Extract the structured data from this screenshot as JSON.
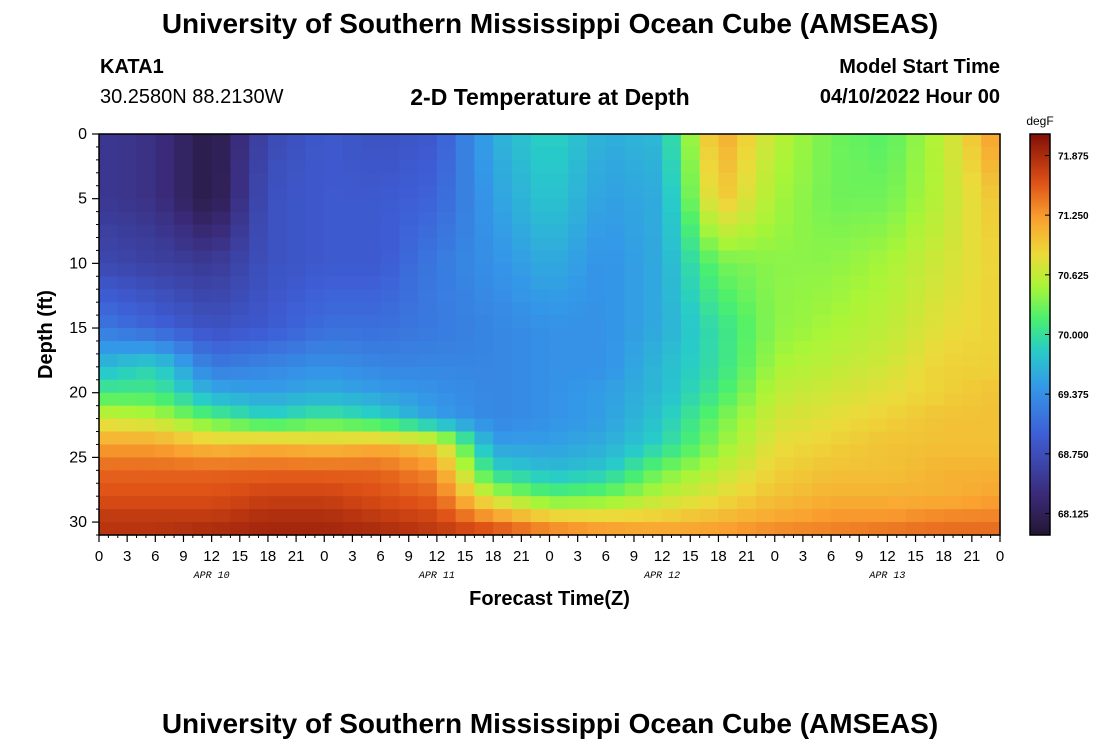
{
  "header": {
    "title": "University of Southern Mississippi Ocean Cube (AMSEAS)",
    "station": "KATA1",
    "coordinates": "30.2580N  88.2130W",
    "subtitle": "2-D Temperature at Depth",
    "model_start_label": "Model Start Time",
    "model_start_value": "04/10/2022 Hour 00"
  },
  "footer": {
    "title": "University of Southern Mississippi Ocean Cube (AMSEAS)"
  },
  "chart_data": {
    "type": "heatmap",
    "title": "2-D Temperature at Depth",
    "xlabel": "Forecast Time(Z)",
    "ylabel": "Depth (ft)",
    "xlim": [
      0,
      96
    ],
    "ylim": [
      31,
      0
    ],
    "x_ticks": [
      0,
      3,
      6,
      9,
      12,
      15,
      18,
      21,
      24,
      27,
      30,
      33,
      36,
      39,
      42,
      45,
      48,
      51,
      54,
      57,
      60,
      63,
      66,
      69,
      72,
      75,
      78,
      81,
      84,
      87,
      90,
      93,
      96
    ],
    "x_tick_labels": [
      "0",
      "3",
      "6",
      "9",
      "12",
      "15",
      "18",
      "21",
      "0",
      "3",
      "6",
      "9",
      "12",
      "15",
      "18",
      "21",
      "0",
      "3",
      "6",
      "9",
      "12",
      "15",
      "18",
      "21",
      "0",
      "3",
      "6",
      "9",
      "12",
      "15",
      "18",
      "21",
      "0"
    ],
    "day_labels": [
      {
        "label": "APR 10",
        "x": 12
      },
      {
        "label": "APR 11",
        "x": 36
      },
      {
        "label": "APR 12",
        "x": 60
      },
      {
        "label": "APR 13",
        "x": 84
      }
    ],
    "y_ticks": [
      0,
      5,
      10,
      15,
      20,
      25,
      30
    ],
    "y_tick_labels": [
      "0",
      "5",
      "10",
      "15",
      "20",
      "25",
      "30"
    ],
    "colorbar": {
      "unit": "degF",
      "min": 67.9,
      "max": 72.1,
      "ticks": [
        68.125,
        68.75,
        69.375,
        70.0,
        70.625,
        71.25,
        71.875
      ],
      "tick_labels": [
        "68.125",
        "68.750",
        "69.375",
        "70.000",
        "70.625",
        "71.250",
        "71.875"
      ]
    },
    "depths_ft": [
      0,
      5,
      10,
      15,
      18,
      20,
      22,
      24,
      26,
      28,
      30,
      31
    ],
    "times_hr": [
      0,
      6,
      12,
      18,
      24,
      30,
      36,
      42,
      48,
      54,
      60,
      66,
      72,
      78,
      84,
      90,
      96
    ],
    "temperature_degF": [
      [
        68.5,
        68.4,
        68.0,
        68.7,
        68.9,
        68.8,
        68.9,
        69.6,
        69.9,
        69.6,
        69.7,
        71.2,
        70.6,
        70.3,
        70.2,
        70.6,
        71.3
      ],
      [
        68.5,
        68.4,
        68.0,
        68.8,
        68.9,
        68.9,
        69.0,
        69.5,
        69.8,
        69.5,
        69.6,
        71.0,
        70.5,
        70.3,
        70.3,
        70.6,
        71.0
      ],
      [
        68.7,
        68.6,
        68.5,
        68.8,
        68.9,
        68.9,
        69.2,
        69.4,
        69.6,
        69.4,
        69.6,
        70.3,
        70.4,
        70.4,
        70.5,
        70.7,
        70.9
      ],
      [
        69.2,
        69.0,
        68.8,
        68.9,
        69.1,
        69.1,
        69.2,
        69.3,
        69.4,
        69.4,
        69.6,
        70.0,
        70.4,
        70.5,
        70.6,
        70.8,
        70.9
      ],
      [
        69.7,
        69.9,
        69.2,
        69.3,
        69.4,
        69.3,
        69.3,
        69.3,
        69.4,
        69.4,
        69.7,
        70.0,
        70.5,
        70.6,
        70.7,
        70.9,
        70.9
      ],
      [
        70.1,
        70.1,
        69.6,
        69.5,
        69.6,
        69.5,
        69.4,
        69.3,
        69.4,
        69.5,
        69.7,
        70.1,
        70.6,
        70.7,
        70.8,
        70.9,
        71.0
      ],
      [
        70.7,
        70.6,
        70.2,
        69.9,
        70.1,
        69.9,
        69.5,
        69.3,
        69.4,
        69.5,
        69.8,
        70.3,
        70.7,
        70.8,
        70.9,
        71.0,
        71.0
      ],
      [
        71.2,
        71.2,
        71.0,
        71.1,
        71.0,
        71.1,
        70.9,
        69.5,
        69.5,
        69.6,
        69.9,
        70.4,
        70.8,
        70.9,
        71.0,
        71.0,
        71.0
      ],
      [
        71.5,
        71.5,
        71.5,
        71.5,
        71.5,
        71.5,
        71.3,
        69.9,
        69.7,
        69.8,
        70.3,
        70.6,
        70.9,
        71.0,
        71.0,
        71.1,
        71.1
      ],
      [
        71.6,
        71.6,
        71.6,
        71.7,
        71.7,
        71.6,
        71.5,
        70.6,
        70.2,
        70.3,
        70.6,
        70.8,
        71.0,
        71.1,
        71.1,
        71.1,
        71.2
      ],
      [
        71.8,
        71.8,
        71.8,
        71.9,
        71.9,
        71.8,
        71.7,
        71.4,
        71.1,
        71.0,
        71.0,
        71.1,
        71.2,
        71.3,
        71.3,
        71.4,
        71.4
      ],
      [
        71.8,
        71.8,
        71.9,
        71.9,
        71.9,
        71.9,
        71.8,
        71.7,
        71.5,
        71.4,
        71.3,
        71.3,
        71.4,
        71.4,
        71.5,
        71.5,
        71.5
      ]
    ]
  }
}
